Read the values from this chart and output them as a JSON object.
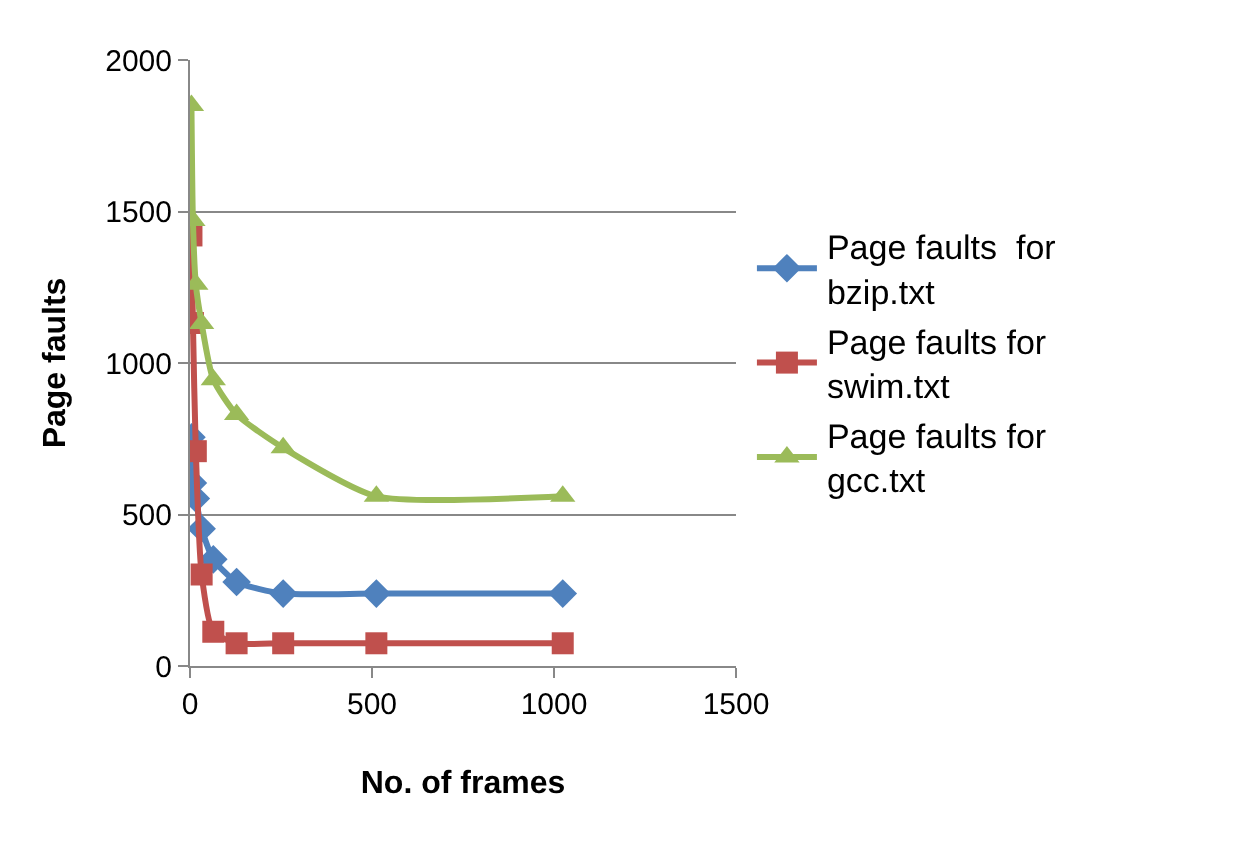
{
  "chart_data": {
    "type": "line",
    "xlabel": "No. of frames",
    "ylabel": "Page faults",
    "xlim": [
      0,
      1500
    ],
    "xticks": [
      0,
      500,
      1000,
      1500
    ],
    "ylim": [
      0,
      2000
    ],
    "yticks": [
      0,
      500,
      1000,
      1500,
      2000
    ],
    "grid": "y",
    "legend": "right",
    "x": [
      4,
      8,
      16,
      32,
      64,
      128,
      256,
      512,
      1024
    ],
    "series": [
      {
        "name": "Page faults  for bzip.txt",
        "color": "#4f81bd",
        "marker": "diamond",
        "values": [
          755,
          604,
          553,
          453,
          352,
          277,
          239,
          239,
          239
        ]
      },
      {
        "name": "Page faults for swim.txt",
        "color": "#c0504d",
        "marker": "square",
        "values": [
          1421,
          1132,
          709,
          302,
          113,
          75,
          75,
          75,
          75
        ]
      },
      {
        "name": "Page faults for gcc.txt",
        "color": "#9bbb59",
        "marker": "triangle",
        "values": [
          1850,
          1470,
          1260,
          1130,
          945,
          830,
          720,
          560,
          560
        ]
      }
    ]
  }
}
